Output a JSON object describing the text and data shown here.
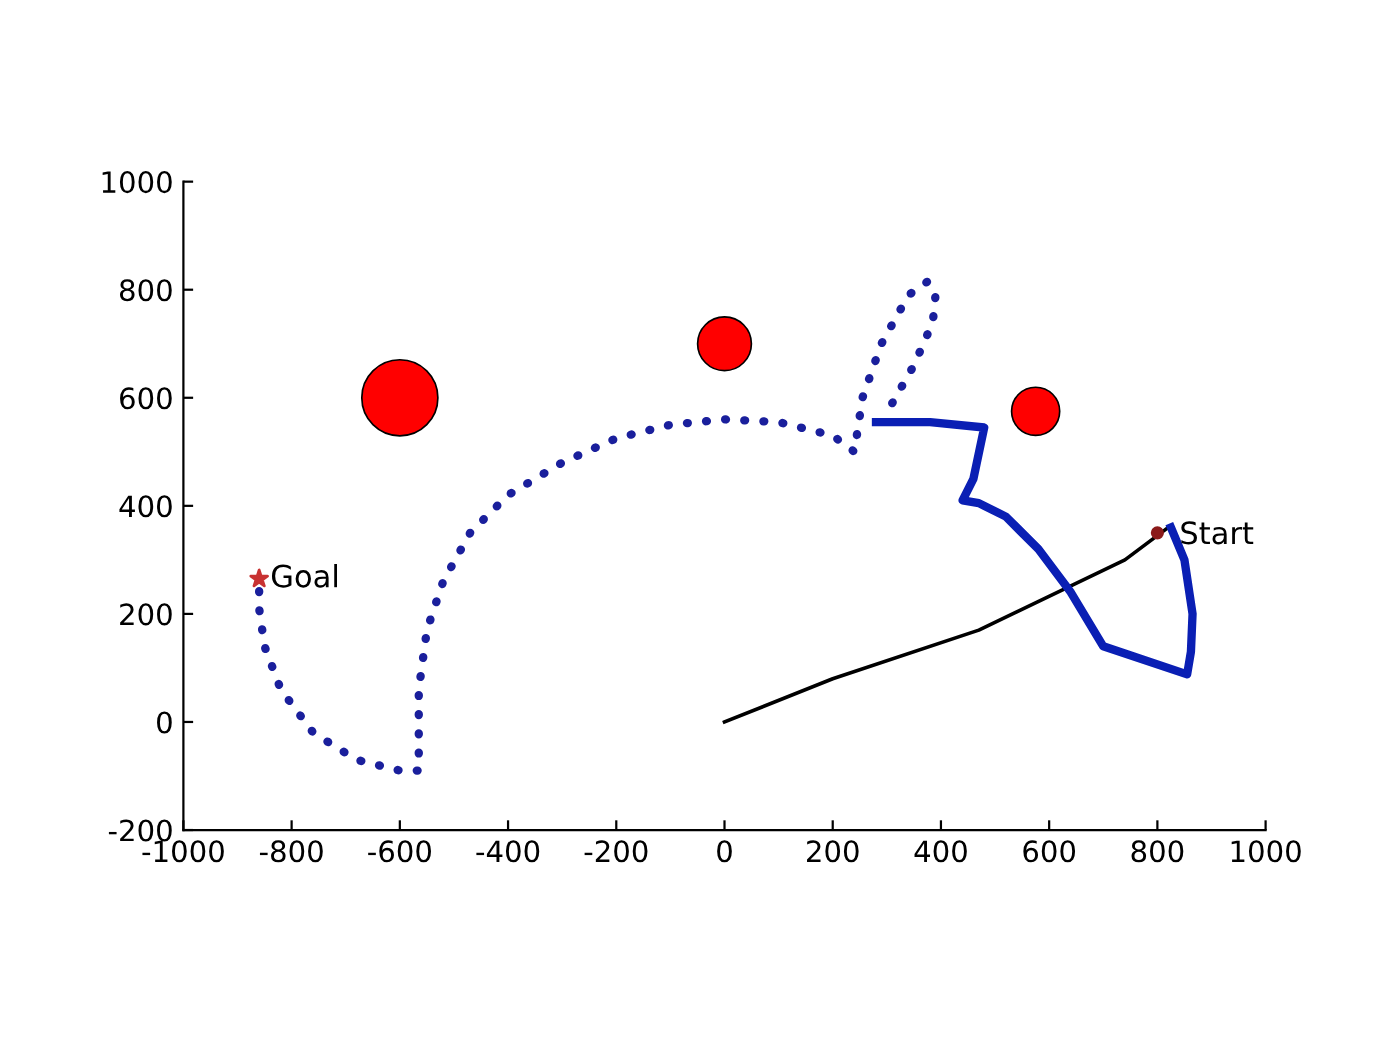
{
  "chart_data": {
    "type": "line",
    "xlim": [
      -1000,
      1000
    ],
    "ylim": [
      -200,
      1000
    ],
    "xticks": [
      -1000,
      -800,
      -600,
      -400,
      -200,
      0,
      200,
      400,
      600,
      800,
      1000
    ],
    "yticks": [
      -200,
      0,
      200,
      400,
      600,
      800,
      1000
    ],
    "grid": false,
    "legend": false,
    "series": [
      {
        "type": "bubble",
        "color": "#ff0000",
        "x": [
          -600,
          0,
          575
        ],
        "values": [
          600,
          700,
          575
        ],
        "sizes": [
          1,
          0.5,
          0.4
        ]
      },
      {
        "color": "#000000",
        "line_style": "solid",
        "x": [
          0,
          200,
          470,
          740,
          820
        ],
        "values": [
          0,
          80,
          170,
          300,
          360
        ]
      },
      {
        "color": "#0a1fb4",
        "line_style": "solid",
        "x": [
          825,
          850,
          865,
          862,
          855,
          700,
          640,
          580,
          520,
          470,
          440,
          460,
          480,
          380,
          280
        ],
        "values": [
          360,
          300,
          200,
          130,
          88,
          140,
          240,
          320,
          380,
          405,
          410,
          450,
          545,
          555,
          555
        ]
      },
      {
        "color": "#1a1f9c",
        "line_style": "dotted",
        "x": [
          310,
          350,
          385,
          390,
          375,
          340,
          290,
          255,
          240,
          200,
          100,
          0,
          -100,
          -200,
          -300,
          -400,
          -470,
          -520,
          -550,
          -565,
          -565,
          -600,
          -680,
          -760,
          -820,
          -850,
          -860,
          -860
        ],
        "values": [
          590,
          660,
          740,
          790,
          815,
          790,
          700,
          600,
          500,
          530,
          555,
          560,
          550,
          525,
          480,
          420,
          350,
          260,
          170,
          60,
          -90,
          -90,
          -70,
          -20,
          60,
          140,
          210,
          265
        ]
      },
      {
        "type": "scatter",
        "color": "#c83232",
        "marker": "star",
        "x": [
          -860
        ],
        "values": [
          265
        ]
      },
      {
        "type": "scatter",
        "color": "#8b1a1a",
        "marker": "circle",
        "x": [
          800
        ],
        "values": [
          350
        ]
      }
    ],
    "annotations": [
      {
        "text": "Goal",
        "x": -860,
        "y": 265
      },
      {
        "text": "Start",
        "x": 820,
        "y": 345
      }
    ]
  }
}
